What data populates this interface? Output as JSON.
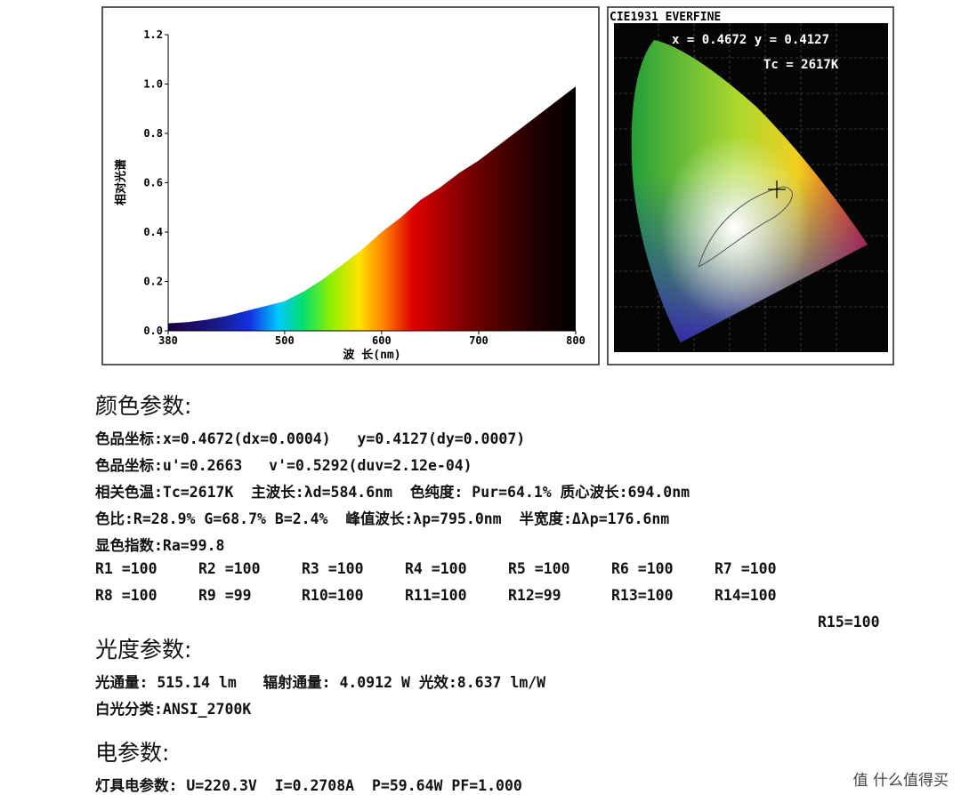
{
  "spectrum": {
    "chart_data": {
      "type": "area",
      "y_label": "相对光谱",
      "x_label": "波 长(nm)",
      "x": [
        380,
        400,
        420,
        440,
        460,
        480,
        500,
        520,
        540,
        560,
        580,
        600,
        620,
        640,
        660,
        680,
        700,
        720,
        740,
        760,
        780,
        800
      ],
      "values": [
        0.03,
        0.035,
        0.045,
        0.06,
        0.08,
        0.1,
        0.12,
        0.16,
        0.21,
        0.27,
        0.33,
        0.4,
        0.46,
        0.53,
        0.58,
        0.64,
        0.69,
        0.75,
        0.81,
        0.87,
        0.93,
        0.99
      ],
      "xlim": [
        380,
        800
      ],
      "xticks": [
        380,
        500,
        600,
        700,
        800
      ],
      "ylim": [
        0,
        1.2
      ],
      "yticks": [
        {
          "value": 0,
          "label": "0.0"
        },
        0.2,
        0.4,
        0.6,
        0.8,
        {
          "value": 1,
          "label": "1.0"
        },
        1.2
      ]
    }
  },
  "cie": {
    "title": "CIE1931 EVERFINE",
    "coords": "x = 0.4672 y = 0.4127",
    "tc": "Tc = 2617K"
  },
  "sections": [
    {
      "title": "颜色参数:",
      "lines": [
        "色品坐标:x=0.4672(dx=0.0004)   y=0.4127(dy=0.0007)",
        "色品坐标:u'=0.2663   v'=0.5292(duv=2.12e-04)",
        "相关色温:Tc=2617K  主波长:λd=584.6nm  色纯度: Pur=64.1% 质心波长:694.0nm",
        "色比:R=28.9% G=68.7% B=2.4%  峰值波长:λp=795.0nm  半宽度:Δλp=176.6nm",
        "显色指数:Ra=99.8"
      ],
      "grid": [
        "R1 =100",
        "R2 =100",
        "R3 =100",
        "R4 =100",
        "R5 =100",
        "R6 =100",
        "R7 =100",
        "R8 =100",
        "R9 =99",
        "R10=100",
        "R11=100",
        "R12=99",
        "R13=100",
        "R14=100",
        "R15=100"
      ]
    },
    {
      "title": "光度参数:",
      "lines": [
        "光通量: 515.14 lm   辐射通量: 4.0912 W 光效:8.637 lm/W",
        "白光分类:ANSI_2700K"
      ]
    },
    {
      "title": "电参数:",
      "lines": [
        "灯具电参数: U=220.3V  I=0.2708A  P=59.64W PF=1.000"
      ]
    }
  ],
  "watermark": "值 什么值得买"
}
